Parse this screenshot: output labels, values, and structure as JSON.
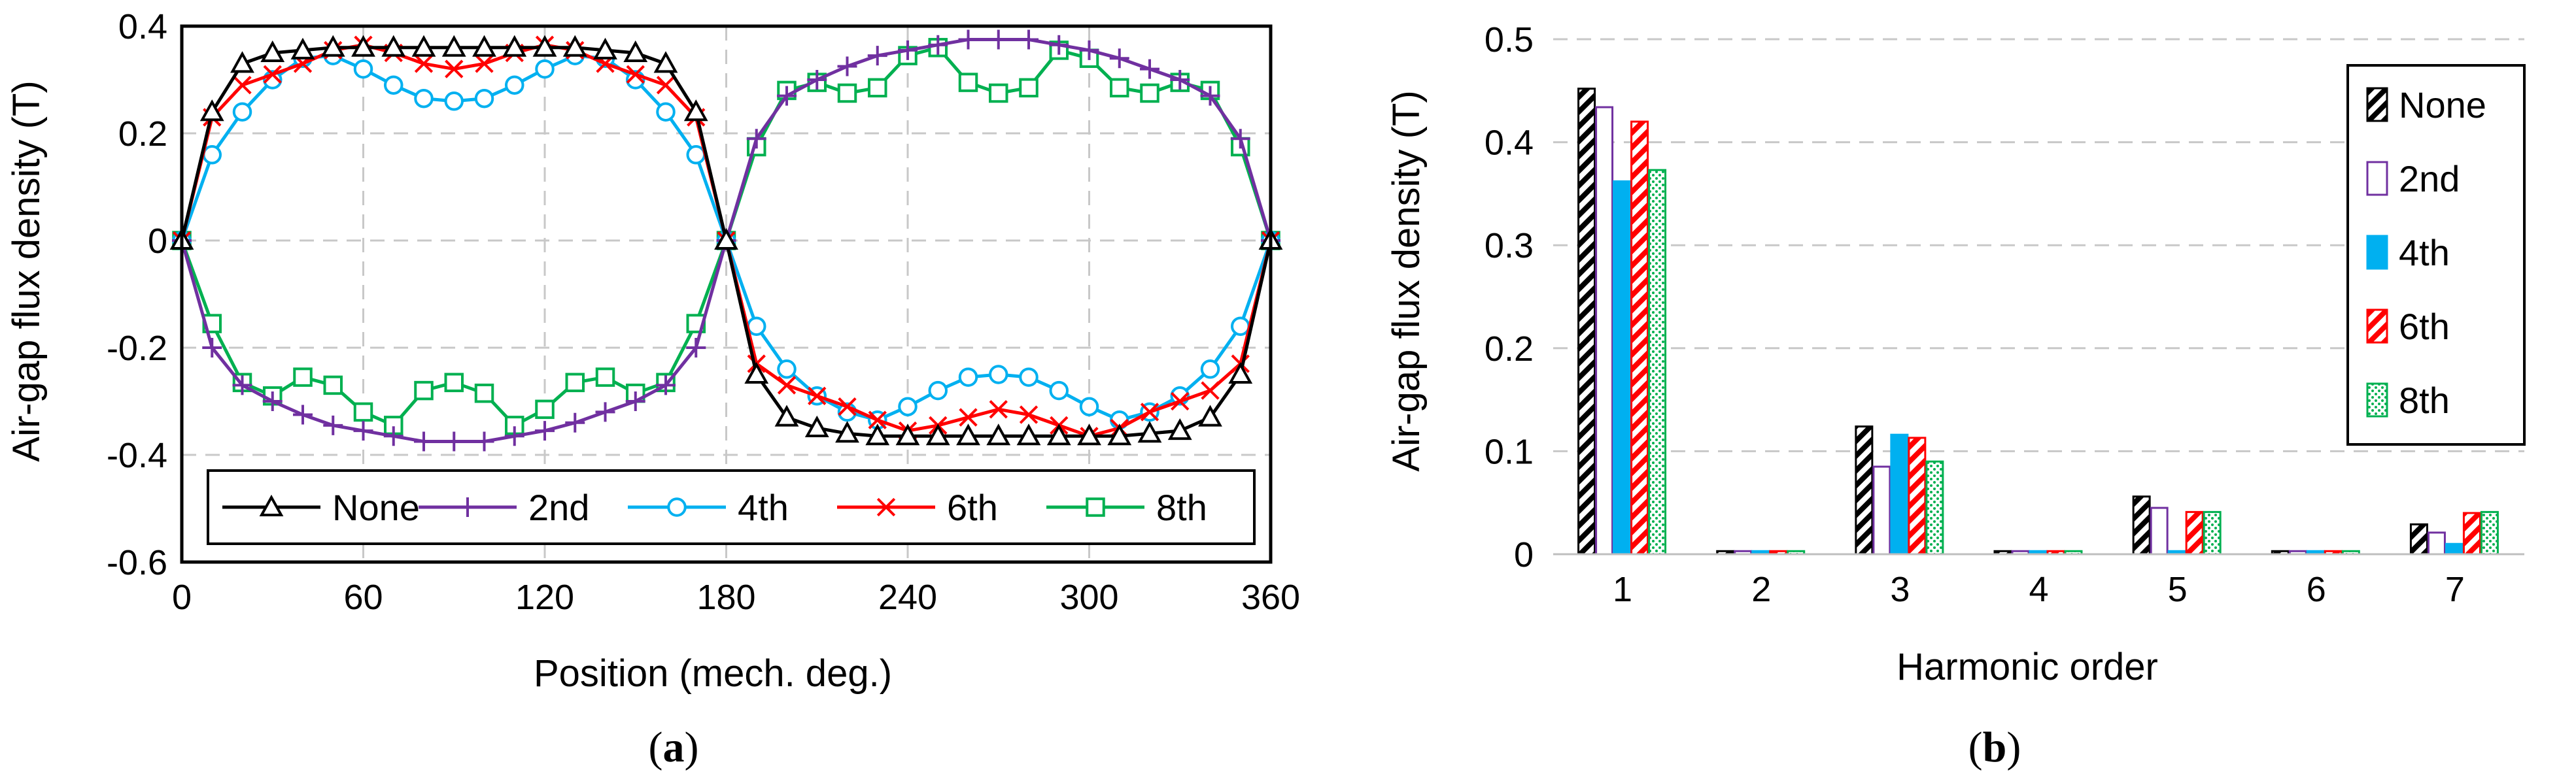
{
  "colors": {
    "none": "#000000",
    "second": "#7030a0",
    "fourth": "#00b0f0",
    "sixth": "#ff0000",
    "eighth": "#00b050",
    "grid": "#c8c8c8"
  },
  "panels": {
    "a": {
      "caption_pre": "(",
      "caption_letter": "a",
      "caption_post": ")"
    },
    "b": {
      "caption_pre": "(",
      "caption_letter": "b",
      "caption_post": ")"
    }
  },
  "chart_data": [
    {
      "type": "line",
      "title": "",
      "xlabel": "Position (mech. deg.)",
      "ylabel": "Air-gap flux density (T)",
      "xlim": [
        0,
        360
      ],
      "ylim": [
        -0.6,
        0.4
      ],
      "xticks": [
        "0",
        "60",
        "120",
        "180",
        "240",
        "300",
        "360"
      ],
      "yticks": [
        "0.4",
        "0.2",
        "0",
        "-0.2",
        "-0.4",
        "-0.6"
      ],
      "grid": true,
      "legend_position": "bottom",
      "series": [
        {
          "name": "None",
          "marker": "triangle",
          "x": [
            0,
            10,
            20,
            30,
            40,
            50,
            60,
            70,
            80,
            90,
            100,
            110,
            120,
            130,
            140,
            150,
            160,
            170,
            180,
            190,
            200,
            210,
            220,
            230,
            240,
            250,
            260,
            270,
            280,
            290,
            300,
            310,
            320,
            330,
            340,
            350,
            360
          ],
          "y": [
            0,
            0.24,
            0.33,
            0.35,
            0.355,
            0.36,
            0.36,
            0.36,
            0.36,
            0.36,
            0.36,
            0.36,
            0.36,
            0.36,
            0.355,
            0.35,
            0.33,
            0.24,
            0,
            -0.25,
            -0.33,
            -0.35,
            -0.36,
            -0.365,
            -0.365,
            -0.365,
            -0.365,
            -0.365,
            -0.365,
            -0.365,
            -0.365,
            -0.365,
            -0.36,
            -0.355,
            -0.33,
            -0.25,
            0
          ]
        },
        {
          "name": "2nd",
          "marker": "plus",
          "x": [
            0,
            10,
            20,
            30,
            40,
            50,
            60,
            70,
            80,
            90,
            100,
            110,
            120,
            130,
            140,
            150,
            160,
            170,
            180,
            190,
            200,
            210,
            220,
            230,
            240,
            250,
            260,
            270,
            280,
            290,
            300,
            310,
            320,
            330,
            340,
            350,
            360
          ],
          "y": [
            0,
            -0.2,
            -0.27,
            -0.3,
            -0.325,
            -0.345,
            -0.355,
            -0.365,
            -0.375,
            -0.375,
            -0.375,
            -0.365,
            -0.355,
            -0.34,
            -0.32,
            -0.3,
            -0.27,
            -0.2,
            0,
            0.19,
            0.27,
            0.3,
            0.325,
            0.345,
            0.355,
            0.365,
            0.375,
            0.375,
            0.375,
            0.365,
            0.355,
            0.34,
            0.32,
            0.3,
            0.27,
            0.19,
            0
          ]
        },
        {
          "name": "4th",
          "marker": "circle",
          "x": [
            0,
            10,
            20,
            30,
            40,
            50,
            60,
            70,
            80,
            90,
            100,
            110,
            120,
            130,
            140,
            150,
            160,
            170,
            180,
            190,
            200,
            210,
            220,
            230,
            240,
            250,
            260,
            270,
            280,
            290,
            300,
            310,
            320,
            330,
            340,
            350,
            360
          ],
          "y": [
            0,
            0.16,
            0.24,
            0.3,
            0.34,
            0.345,
            0.32,
            0.29,
            0.265,
            0.26,
            0.265,
            0.29,
            0.32,
            0.345,
            0.34,
            0.3,
            0.24,
            0.16,
            0,
            -0.16,
            -0.24,
            -0.29,
            -0.32,
            -0.335,
            -0.31,
            -0.28,
            -0.255,
            -0.25,
            -0.255,
            -0.28,
            -0.31,
            -0.335,
            -0.32,
            -0.29,
            -0.24,
            -0.16,
            0
          ]
        },
        {
          "name": "6th",
          "marker": "x",
          "x": [
            0,
            10,
            20,
            30,
            40,
            50,
            60,
            70,
            80,
            90,
            100,
            110,
            120,
            130,
            140,
            150,
            160,
            170,
            180,
            190,
            200,
            210,
            220,
            230,
            240,
            250,
            260,
            270,
            280,
            290,
            300,
            310,
            320,
            330,
            340,
            350,
            360
          ],
          "y": [
            0,
            0.23,
            0.29,
            0.31,
            0.33,
            0.355,
            0.365,
            0.35,
            0.33,
            0.32,
            0.33,
            0.35,
            0.365,
            0.355,
            0.33,
            0.31,
            0.29,
            0.23,
            0,
            -0.23,
            -0.27,
            -0.29,
            -0.31,
            -0.335,
            -0.355,
            -0.345,
            -0.33,
            -0.315,
            -0.325,
            -0.345,
            -0.365,
            -0.35,
            -0.32,
            -0.3,
            -0.28,
            -0.23,
            0
          ]
        },
        {
          "name": "8th",
          "marker": "square",
          "x": [
            0,
            10,
            20,
            30,
            40,
            50,
            60,
            70,
            80,
            90,
            100,
            110,
            120,
            130,
            140,
            150,
            160,
            170,
            180,
            190,
            200,
            210,
            220,
            230,
            240,
            250,
            260,
            270,
            280,
            290,
            300,
            310,
            320,
            330,
            340,
            350,
            360
          ],
          "y": [
            0,
            -0.155,
            -0.265,
            -0.29,
            -0.255,
            -0.27,
            -0.32,
            -0.345,
            -0.28,
            -0.265,
            -0.285,
            -0.345,
            -0.315,
            -0.265,
            -0.255,
            -0.285,
            -0.265,
            -0.155,
            0,
            0.175,
            0.28,
            0.295,
            0.275,
            0.285,
            0.345,
            0.36,
            0.295,
            0.275,
            0.285,
            0.355,
            0.34,
            0.285,
            0.275,
            0.295,
            0.28,
            0.175,
            0
          ]
        }
      ]
    },
    {
      "type": "bar",
      "title": "",
      "xlabel": "Harmonic order",
      "ylabel": "Air-gap flux density (T)",
      "ylim": [
        0,
        0.5
      ],
      "yticks": [
        "0.5",
        "0.4",
        "0.3",
        "0.2",
        "0.1",
        "0"
      ],
      "grid": true,
      "legend_position": "top-right",
      "categories": [
        "1",
        "2",
        "3",
        "4",
        "5",
        "6",
        "7"
      ],
      "series": [
        {
          "name": "None",
          "pattern": "hatch-black",
          "values": [
            0.452,
            0.003,
            0.124,
            0.003,
            0.056,
            0.003,
            0.029
          ]
        },
        {
          "name": "2nd",
          "pattern": "outline-purple",
          "values": [
            0.434,
            0.003,
            0.085,
            0.003,
            0.045,
            0.003,
            0.021
          ]
        },
        {
          "name": "4th",
          "pattern": "solid-blue",
          "values": [
            0.362,
            0.003,
            0.116,
            0.003,
            0.003,
            0.003,
            0.01
          ]
        },
        {
          "name": "6th",
          "pattern": "hatch-red",
          "values": [
            0.42,
            0.003,
            0.113,
            0.003,
            0.041,
            0.003,
            0.04
          ]
        },
        {
          "name": "8th",
          "pattern": "dots-green",
          "values": [
            0.373,
            0.003,
            0.09,
            0.003,
            0.041,
            0.003,
            0.041
          ]
        }
      ]
    }
  ]
}
